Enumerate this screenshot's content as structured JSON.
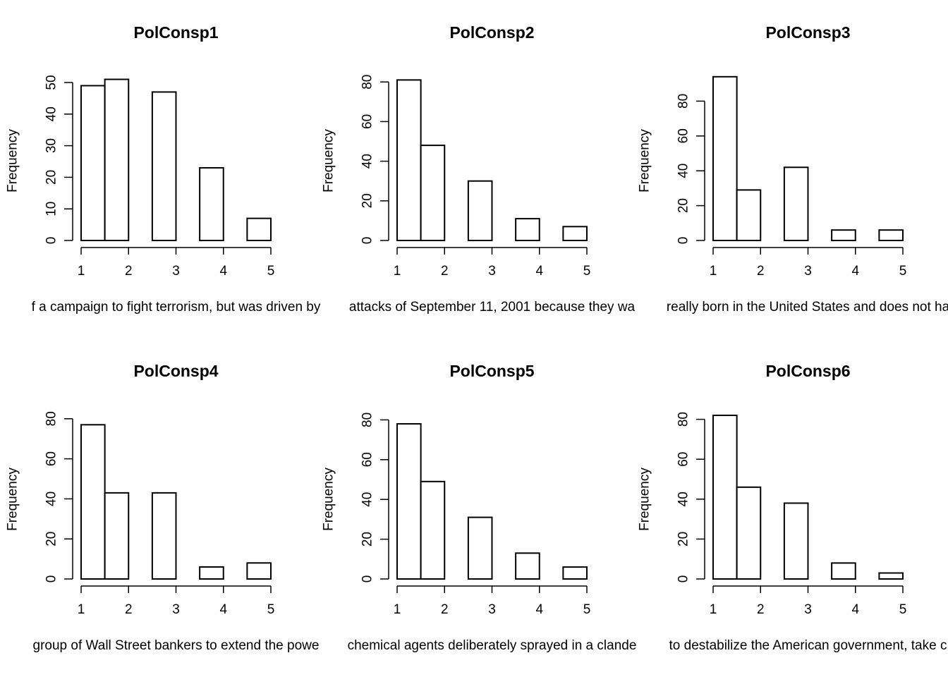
{
  "chart_data": [
    {
      "type": "bar",
      "title": "PolConsp1",
      "xlabel": "f a campaign to fight terrorism, but was driven by",
      "ylabel": "Frequency",
      "bins": [
        [
          1.0,
          1.5
        ],
        [
          1.5,
          2.0
        ],
        [
          2.5,
          3.0
        ],
        [
          3.5,
          4.0
        ],
        [
          4.5,
          5.0
        ]
      ],
      "values": [
        49,
        51,
        47,
        23,
        7
      ],
      "xlim": [
        1,
        5
      ],
      "ylim": [
        0,
        50
      ],
      "xticks": [
        1,
        2,
        3,
        4,
        5
      ],
      "yticks": [
        0,
        10,
        20,
        30,
        40,
        50
      ],
      "grid": false
    },
    {
      "type": "bar",
      "title": "PolConsp2",
      "xlabel": "attacks of September 11, 2001 because they wa",
      "ylabel": "Frequency",
      "bins": [
        [
          1.0,
          1.5
        ],
        [
          1.5,
          2.0
        ],
        [
          2.5,
          3.0
        ],
        [
          3.5,
          4.0
        ],
        [
          4.5,
          5.0
        ]
      ],
      "values": [
        81,
        48,
        30,
        11,
        7
      ],
      "xlim": [
        1,
        5
      ],
      "ylim": [
        0,
        80
      ],
      "xticks": [
        1,
        2,
        3,
        4,
        5
      ],
      "yticks": [
        0,
        20,
        40,
        60,
        80
      ],
      "grid": false
    },
    {
      "type": "bar",
      "title": "PolConsp3",
      "xlabel": "really born in the United States and does not ha",
      "ylabel": "Frequency",
      "bins": [
        [
          1.0,
          1.5
        ],
        [
          1.5,
          2.0
        ],
        [
          2.5,
          3.0
        ],
        [
          3.5,
          4.0
        ],
        [
          4.5,
          5.0
        ]
      ],
      "values": [
        94,
        29,
        42,
        6,
        6
      ],
      "xlim": [
        1,
        5
      ],
      "ylim": [
        0,
        80
      ],
      "xticks": [
        1,
        2,
        3,
        4,
        5
      ],
      "yticks": [
        0,
        20,
        40,
        60,
        80
      ],
      "grid": false
    },
    {
      "type": "bar",
      "title": "PolConsp4",
      "xlabel": "group of Wall Street bankers to extend the powe",
      "ylabel": "Frequency",
      "bins": [
        [
          1.0,
          1.5
        ],
        [
          1.5,
          2.0
        ],
        [
          2.5,
          3.0
        ],
        [
          3.5,
          4.0
        ],
        [
          4.5,
          5.0
        ]
      ],
      "values": [
        77,
        43,
        43,
        6,
        8
      ],
      "xlim": [
        1,
        5
      ],
      "ylim": [
        0,
        80
      ],
      "xticks": [
        1,
        2,
        3,
        4,
        5
      ],
      "yticks": [
        0,
        20,
        40,
        60,
        80
      ],
      "grid": false
    },
    {
      "type": "bar",
      "title": "PolConsp5",
      "xlabel": "chemical agents deliberately sprayed in a clande",
      "ylabel": "Frequency",
      "bins": [
        [
          1.0,
          1.5
        ],
        [
          1.5,
          2.0
        ],
        [
          2.5,
          3.0
        ],
        [
          3.5,
          4.0
        ],
        [
          4.5,
          5.0
        ]
      ],
      "values": [
        78,
        49,
        31,
        13,
        6
      ],
      "xlim": [
        1,
        5
      ],
      "ylim": [
        0,
        80
      ],
      "xticks": [
        1,
        2,
        3,
        4,
        5
      ],
      "yticks": [
        0,
        20,
        40,
        60,
        80
      ],
      "grid": false
    },
    {
      "type": "bar",
      "title": "PolConsp6",
      "xlabel": "to destabilize the American government, take c",
      "ylabel": "Frequency",
      "bins": [
        [
          1.0,
          1.5
        ],
        [
          1.5,
          2.0
        ],
        [
          2.5,
          3.0
        ],
        [
          3.5,
          4.0
        ],
        [
          4.5,
          5.0
        ]
      ],
      "values": [
        82,
        46,
        38,
        8,
        3
      ],
      "xlim": [
        1,
        5
      ],
      "ylim": [
        0,
        80
      ],
      "xticks": [
        1,
        2,
        3,
        4,
        5
      ],
      "yticks": [
        0,
        20,
        40,
        60,
        80
      ],
      "grid": false
    }
  ]
}
